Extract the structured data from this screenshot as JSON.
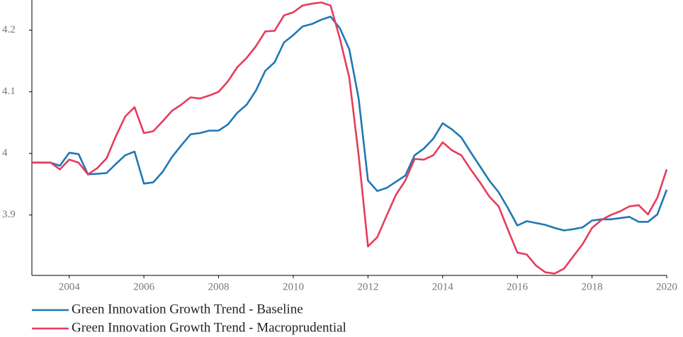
{
  "chart_data": {
    "type": "line",
    "x": [
      2003.0,
      2003.5,
      2003.75,
      2004.0,
      2004.25,
      2004.5,
      2004.75,
      2005.0,
      2005.25,
      2005.5,
      2005.75,
      2006.0,
      2006.25,
      2006.5,
      2006.75,
      2007.0,
      2007.25,
      2007.5,
      2007.75,
      2008.0,
      2008.25,
      2008.5,
      2008.75,
      2009.0,
      2009.25,
      2009.5,
      2009.75,
      2010.0,
      2010.25,
      2010.5,
      2010.75,
      2011.0,
      2011.25,
      2011.5,
      2011.75,
      2012.0,
      2012.25,
      2012.5,
      2012.75,
      2013.0,
      2013.25,
      2013.5,
      2013.75,
      2014.0,
      2014.25,
      2014.5,
      2014.75,
      2015.0,
      2015.25,
      2015.5,
      2015.75,
      2016.0,
      2016.25,
      2016.5,
      2016.75,
      2017.0,
      2017.25,
      2017.5,
      2017.75,
      2018.0,
      2018.25,
      2018.5,
      2018.75,
      2019.0,
      2019.25,
      2019.5,
      2019.75,
      2020.0
    ],
    "series": [
      {
        "name": "Green Innovation Growth Trend - Baseline",
        "color": "#1f78b4",
        "values": [
          3.985,
          3.985,
          3.98,
          4.001,
          3.999,
          3.966,
          3.967,
          3.968,
          3.983,
          3.997,
          4.003,
          3.951,
          3.953,
          3.97,
          3.994,
          4.013,
          4.031,
          4.033,
          4.037,
          4.037,
          4.047,
          4.066,
          4.079,
          4.102,
          4.134,
          4.148,
          4.18,
          4.192,
          4.206,
          4.21,
          4.217,
          4.222,
          4.203,
          4.169,
          4.089,
          3.956,
          3.939,
          3.944,
          3.954,
          3.964,
          3.997,
          4.008,
          4.024,
          4.049,
          4.039,
          4.026,
          4.002,
          3.979,
          3.956,
          3.937,
          3.911,
          3.883,
          3.89,
          3.887,
          3.884,
          3.879,
          3.875,
          3.877,
          3.88,
          3.891,
          3.893,
          3.893,
          3.895,
          3.897,
          3.889,
          3.889,
          3.901,
          3.941
        ]
      },
      {
        "name": "Green Innovation Growth Trend - Macroprudential",
        "color": "#e63c5c",
        "values": [
          3.985,
          3.985,
          3.974,
          3.99,
          3.985,
          3.966,
          3.976,
          3.992,
          4.028,
          4.06,
          4.075,
          4.033,
          4.036,
          4.052,
          4.069,
          4.079,
          4.091,
          4.089,
          4.094,
          4.1,
          4.117,
          4.14,
          4.155,
          4.174,
          4.198,
          4.199,
          4.224,
          4.229,
          4.24,
          4.243,
          4.245,
          4.24,
          4.186,
          4.123,
          3.997,
          3.849,
          3.864,
          3.899,
          3.933,
          3.956,
          3.991,
          3.99,
          3.997,
          4.018,
          4.005,
          3.997,
          3.974,
          3.953,
          3.93,
          3.914,
          3.876,
          3.839,
          3.836,
          3.818,
          3.807,
          3.805,
          3.813,
          3.833,
          3.853,
          3.879,
          3.892,
          3.9,
          3.906,
          3.914,
          3.916,
          3.901,
          3.928,
          3.974
        ]
      }
    ],
    "xlim": [
      2003,
      2020
    ],
    "xticks": [
      2004,
      2006,
      2008,
      2010,
      2012,
      2014,
      2016,
      2018,
      2020
    ],
    "ylim": [
      3.802,
      4.249
    ],
    "yticks": [
      3.9,
      4,
      4.1,
      4.2
    ],
    "legend": "bottom-left"
  }
}
